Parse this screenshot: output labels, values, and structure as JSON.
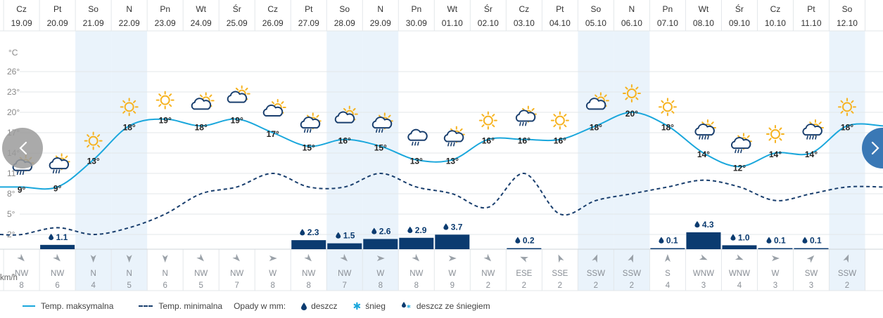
{
  "chart_data": {
    "type": "line",
    "days": [
      {
        "dn": "Cz",
        "date": "19.09",
        "max": 9,
        "min": 2,
        "icon": "partly-cloudy-rain",
        "precip": null,
        "wind_dir": "NW",
        "wind_speed": 8,
        "wind_rot": 315,
        "weekend": false
      },
      {
        "dn": "Pt",
        "date": "20.09",
        "max": 9,
        "min": 3,
        "icon": "sun-rain-cloud",
        "precip": "1.1",
        "wind_dir": "NW",
        "wind_speed": 6,
        "wind_rot": 315,
        "weekend": false
      },
      {
        "dn": "So",
        "date": "21.09",
        "max": 13,
        "min": 2,
        "icon": "sun",
        "precip": null,
        "wind_dir": "N",
        "wind_speed": 4,
        "wind_rot": 0,
        "weekend": true
      },
      {
        "dn": "N",
        "date": "22.09",
        "max": 18,
        "min": 3,
        "icon": "sun",
        "precip": null,
        "wind_dir": "N",
        "wind_speed": 5,
        "wind_rot": 0,
        "weekend": true
      },
      {
        "dn": "Pn",
        "date": "23.09",
        "max": 19,
        "min": 5,
        "icon": "sun",
        "precip": null,
        "wind_dir": "N",
        "wind_speed": 6,
        "wind_rot": 0,
        "weekend": false
      },
      {
        "dn": "Wt",
        "date": "24.09",
        "max": 18,
        "min": 8,
        "icon": "cloud-sun",
        "precip": null,
        "wind_dir": "NW",
        "wind_speed": 5,
        "wind_rot": 315,
        "weekend": false
      },
      {
        "dn": "Śr",
        "date": "25.09",
        "max": 19,
        "min": 9,
        "icon": "cloud-sun",
        "precip": null,
        "wind_dir": "NW",
        "wind_speed": 7,
        "wind_rot": 315,
        "weekend": false
      },
      {
        "dn": "Cz",
        "date": "26.09",
        "max": 17,
        "min": 11,
        "icon": "cloud-sun",
        "precip": null,
        "wind_dir": "W",
        "wind_speed": 8,
        "wind_rot": 270,
        "weekend": false
      },
      {
        "dn": "Pt",
        "date": "27.09",
        "max": 15,
        "min": 9,
        "icon": "sun-rain-cloud",
        "precip": "2.3",
        "wind_dir": "NW",
        "wind_speed": 8,
        "wind_rot": 315,
        "weekend": false
      },
      {
        "dn": "So",
        "date": "28.09",
        "max": 16,
        "min": 9,
        "icon": "cloud-sun",
        "precip": "1.5",
        "wind_dir": "NW",
        "wind_speed": 7,
        "wind_rot": 315,
        "weekend": true
      },
      {
        "dn": "N",
        "date": "29.09",
        "max": 15,
        "min": 11,
        "icon": "sun-rain-cloud",
        "precip": "2.6",
        "wind_dir": "W",
        "wind_speed": 8,
        "wind_rot": 270,
        "weekend": true
      },
      {
        "dn": "Pn",
        "date": "30.09",
        "max": 13,
        "min": 9,
        "icon": "cloud-rain",
        "precip": "2.9",
        "wind_dir": "NW",
        "wind_speed": 8,
        "wind_rot": 315,
        "weekend": false
      },
      {
        "dn": "Wt",
        "date": "01.10",
        "max": 13,
        "min": 8,
        "icon": "sun-rain-cloud",
        "precip": "3.7",
        "wind_dir": "W",
        "wind_speed": 9,
        "wind_rot": 270,
        "weekend": false
      },
      {
        "dn": "Śr",
        "date": "02.10",
        "max": 16,
        "min": 6,
        "icon": "sun",
        "precip": null,
        "wind_dir": "NW",
        "wind_speed": 2,
        "wind_rot": 315,
        "weekend": false
      },
      {
        "dn": "Cz",
        "date": "03.10",
        "max": 16,
        "min": 11,
        "icon": "sun-rain-cloud",
        "precip": "0.2",
        "wind_dir": "ESE",
        "wind_speed": 2,
        "wind_rot": 112,
        "weekend": false
      },
      {
        "dn": "Pt",
        "date": "04.10",
        "max": 16,
        "min": 5,
        "icon": "sun",
        "precip": null,
        "wind_dir": "SSE",
        "wind_speed": 2,
        "wind_rot": 157,
        "weekend": false
      },
      {
        "dn": "So",
        "date": "05.10",
        "max": 18,
        "min": 7,
        "icon": "cloud-sun",
        "precip": null,
        "wind_dir": "SSW",
        "wind_speed": 2,
        "wind_rot": 202,
        "weekend": true
      },
      {
        "dn": "N",
        "date": "06.10",
        "max": 20,
        "min": 8,
        "icon": "sun",
        "precip": null,
        "wind_dir": "SSW",
        "wind_speed": 2,
        "wind_rot": 202,
        "weekend": true
      },
      {
        "dn": "Pn",
        "date": "07.10",
        "max": 18,
        "min": 9,
        "icon": "sun",
        "precip": "0.1",
        "wind_dir": "S",
        "wind_speed": 4,
        "wind_rot": 180,
        "weekend": false
      },
      {
        "dn": "Wt",
        "date": "08.10",
        "max": 14,
        "min": 10,
        "icon": "sun-rain-heavy",
        "precip": "4.3",
        "wind_dir": "WNW",
        "wind_speed": 3,
        "wind_rot": 292,
        "weekend": false
      },
      {
        "dn": "Śr",
        "date": "09.10",
        "max": 12,
        "min": 9,
        "icon": "sun-rain-cloud",
        "precip": "1.0",
        "wind_dir": "WNW",
        "wind_speed": 4,
        "wind_rot": 292,
        "weekend": false
      },
      {
        "dn": "Cz",
        "date": "10.10",
        "max": 14,
        "min": 7,
        "icon": "sun",
        "precip": "0.1",
        "wind_dir": "W",
        "wind_speed": 3,
        "wind_rot": 270,
        "weekend": false
      },
      {
        "dn": "Pt",
        "date": "11.10",
        "max": 14,
        "min": 8,
        "icon": "sun-rain-heavy",
        "precip": "0.1",
        "wind_dir": "SW",
        "wind_speed": 3,
        "wind_rot": 225,
        "weekend": false
      },
      {
        "dn": "So",
        "date": "12.10",
        "max": 18,
        "min": 9,
        "icon": "sun",
        "precip": null,
        "wind_dir": "SSW",
        "wind_speed": 2,
        "wind_rot": 202,
        "weekend": true
      }
    ],
    "y_unit": "°C",
    "y_ticks": [
      26,
      23,
      20,
      17,
      14,
      11,
      8,
      5,
      2
    ],
    "wind_unit": "km/h",
    "series_names": {
      "max": "Temp. maksymalna",
      "min": "Temp. minimalna"
    },
    "colors": {
      "max": "#1aa7dc",
      "min": "#1a3f6e",
      "precip": "#0b3b70",
      "weekend": "#eaf3fb",
      "grid": "#e3e7ea",
      "sun": "#f6b321",
      "cloud": "#1a3f6e"
    }
  },
  "legend": {
    "max_label": "Temp. maksymalna",
    "min_label": "Temp. minimalna",
    "precip_label": "Opady w mm:",
    "rain_label": "deszcz",
    "snow_label": "śnieg",
    "sleet_label": "deszcz ze śniegiem"
  },
  "nav": {
    "prev_icon": "chevron-left-icon",
    "next_icon": "chevron-right-icon"
  }
}
